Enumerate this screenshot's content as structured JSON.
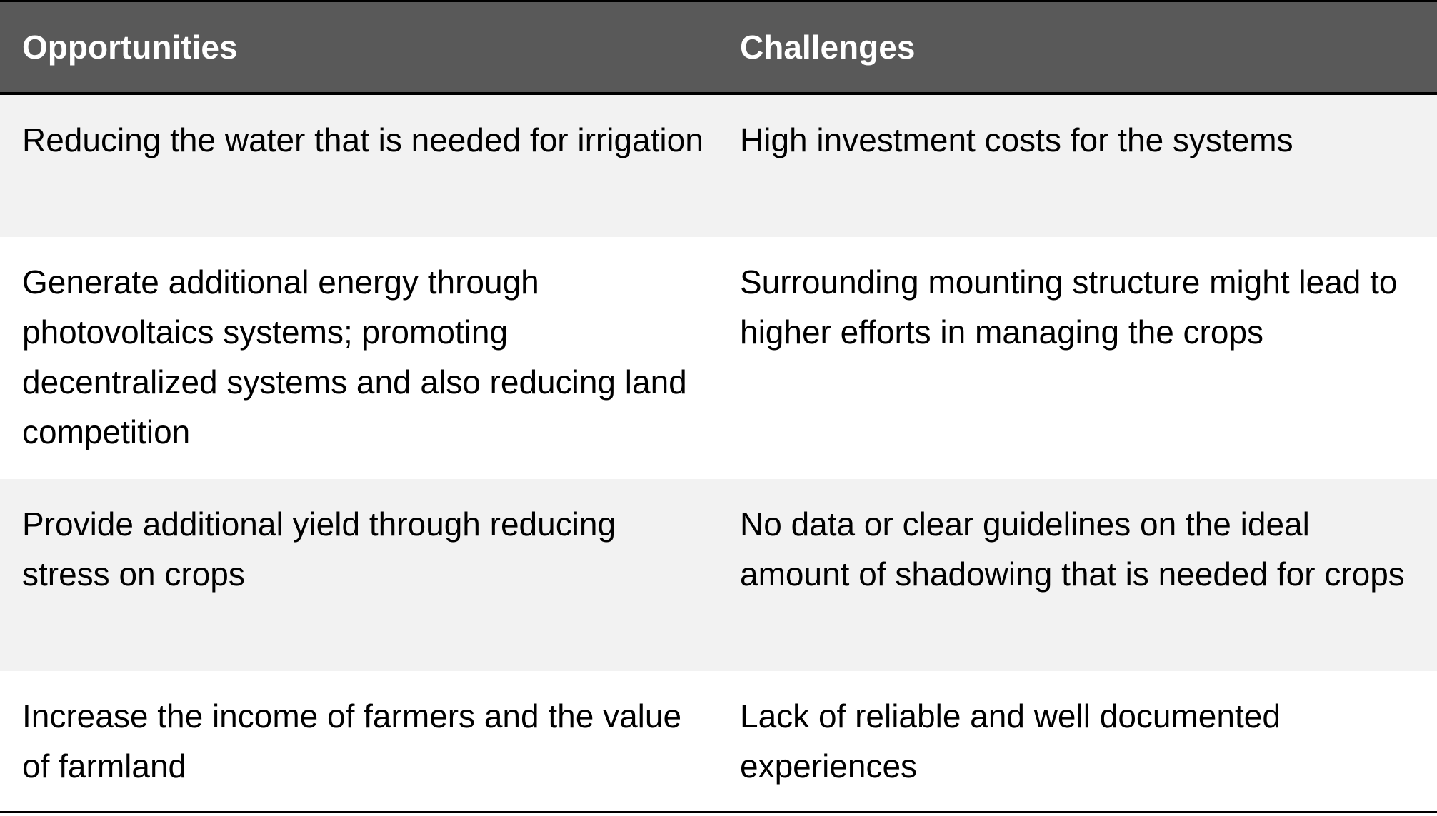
{
  "table": {
    "headers": {
      "opportunities": "Opportunities",
      "challenges": "Challenges"
    },
    "rows": [
      {
        "opportunity": "Reducing the water that is needed for irrigation",
        "challenge": "High investment costs for the systems"
      },
      {
        "opportunity": "Generate additional energy through photovoltaics systems; promoting decentralized systems and also reducing land competition",
        "challenge": "Surrounding mounting structure might lead to higher efforts in managing the crops"
      },
      {
        "opportunity": "Provide additional yield through reducing stress on crops",
        "challenge": "No data or clear guidelines on the ideal amount of shadowing that is needed for crops"
      },
      {
        "opportunity": "Increase the income of farmers and the value of farmland",
        "challenge": "Lack of reliable and well documented experiences"
      }
    ],
    "colors": {
      "header_bg": "#595959",
      "header_text": "#ffffff",
      "stripe_bg": "#f2f2f2",
      "rule": "#000000"
    }
  }
}
